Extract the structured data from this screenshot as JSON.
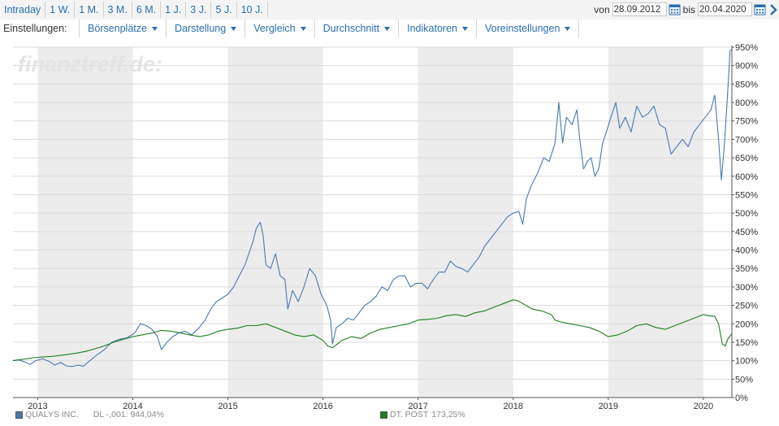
{
  "toolbar": {
    "range_tabs": [
      "Intraday",
      "1 W.",
      "1 M.",
      "3 M.",
      "6 M.",
      "1 J.",
      "3 J.",
      "5 J.",
      "10 J."
    ],
    "from_label": "von",
    "from_date": "28.09.2012",
    "to_label": "bis",
    "to_date": "20.04.2020"
  },
  "menubar": {
    "label": "Einstellungen:",
    "menus": [
      "Börsenplätze",
      "Darstellung",
      "Vergleich",
      "Durchschnitt",
      "Indikatoren",
      "Voreinstellungen"
    ]
  },
  "watermark": "finanztreff.de:",
  "legend": [
    {
      "name": "QUALYS INC.",
      "value": "DL -,001: 944,04%",
      "color": "#4a78b0"
    },
    {
      "name": "DT. POST",
      "value": "173,25%",
      "color": "#1f7d1f"
    }
  ],
  "colors": {
    "band": "#ececec",
    "grid": "#dcdcdc",
    "accent": "#2a6db0"
  },
  "chart_data": {
    "type": "line",
    "x_unit": "year (decimal)",
    "xlim": [
      2012.74,
      2020.3
    ],
    "ylim": [
      0,
      950
    ],
    "y_ticks": [
      0,
      50,
      100,
      150,
      200,
      250,
      300,
      350,
      400,
      450,
      500,
      550,
      600,
      650,
      700,
      750,
      800,
      850,
      900,
      950
    ],
    "y_tick_suffix": "%",
    "x_ticks": [
      2013,
      2014,
      2015,
      2016,
      2017,
      2018,
      2019,
      2020
    ],
    "shaded_years": [
      2013,
      2015,
      2017,
      2019
    ],
    "grid": true,
    "series": [
      {
        "name": "QUALYS INC.",
        "color": "#4a78b0",
        "points": [
          [
            2012.74,
            100
          ],
          [
            2012.8,
            102
          ],
          [
            2012.86,
            97
          ],
          [
            2012.92,
            90
          ],
          [
            2012.98,
            100
          ],
          [
            2013.05,
            105
          ],
          [
            2013.12,
            98
          ],
          [
            2013.18,
            88
          ],
          [
            2013.24,
            95
          ],
          [
            2013.3,
            86
          ],
          [
            2013.36,
            84
          ],
          [
            2013.42,
            88
          ],
          [
            2013.48,
            85
          ],
          [
            2013.55,
            100
          ],
          [
            2013.62,
            115
          ],
          [
            2013.7,
            130
          ],
          [
            2013.78,
            150
          ],
          [
            2013.86,
            158
          ],
          [
            2013.94,
            162
          ],
          [
            2014.02,
            175
          ],
          [
            2014.08,
            200
          ],
          [
            2014.14,
            195
          ],
          [
            2014.2,
            185
          ],
          [
            2014.26,
            165
          ],
          [
            2014.3,
            130
          ],
          [
            2014.36,
            150
          ],
          [
            2014.42,
            165
          ],
          [
            2014.48,
            175
          ],
          [
            2014.55,
            180
          ],
          [
            2014.62,
            170
          ],
          [
            2014.7,
            190
          ],
          [
            2014.76,
            210
          ],
          [
            2014.82,
            240
          ],
          [
            2014.88,
            260
          ],
          [
            2014.94,
            270
          ],
          [
            2015.0,
            280
          ],
          [
            2015.06,
            300
          ],
          [
            2015.12,
            330
          ],
          [
            2015.18,
            360
          ],
          [
            2015.22,
            390
          ],
          [
            2015.26,
            420
          ],
          [
            2015.3,
            460
          ],
          [
            2015.34,
            475
          ],
          [
            2015.37,
            440
          ],
          [
            2015.4,
            360
          ],
          [
            2015.45,
            350
          ],
          [
            2015.5,
            390
          ],
          [
            2015.55,
            330
          ],
          [
            2015.6,
            320
          ],
          [
            2015.63,
            240
          ],
          [
            2015.68,
            290
          ],
          [
            2015.74,
            260
          ],
          [
            2015.8,
            300
          ],
          [
            2015.86,
            350
          ],
          [
            2015.92,
            330
          ],
          [
            2015.98,
            280
          ],
          [
            2016.04,
            250
          ],
          [
            2016.08,
            210
          ],
          [
            2016.1,
            145
          ],
          [
            2016.14,
            190
          ],
          [
            2016.2,
            200
          ],
          [
            2016.26,
            215
          ],
          [
            2016.32,
            210
          ],
          [
            2016.38,
            230
          ],
          [
            2016.44,
            250
          ],
          [
            2016.5,
            260
          ],
          [
            2016.56,
            275
          ],
          [
            2016.62,
            300
          ],
          [
            2016.68,
            290
          ],
          [
            2016.74,
            320
          ],
          [
            2016.8,
            330
          ],
          [
            2016.86,
            330
          ],
          [
            2016.92,
            300
          ],
          [
            2016.98,
            310
          ],
          [
            2017.04,
            310
          ],
          [
            2017.1,
            295
          ],
          [
            2017.16,
            320
          ],
          [
            2017.22,
            340
          ],
          [
            2017.28,
            340
          ],
          [
            2017.34,
            370
          ],
          [
            2017.4,
            355
          ],
          [
            2017.46,
            350
          ],
          [
            2017.52,
            340
          ],
          [
            2017.58,
            360
          ],
          [
            2017.64,
            380
          ],
          [
            2017.7,
            410
          ],
          [
            2017.76,
            430
          ],
          [
            2017.82,
            450
          ],
          [
            2017.88,
            470
          ],
          [
            2017.94,
            490
          ],
          [
            2018.0,
            500
          ],
          [
            2018.06,
            505
          ],
          [
            2018.1,
            470
          ],
          [
            2018.14,
            540
          ],
          [
            2018.2,
            580
          ],
          [
            2018.26,
            610
          ],
          [
            2018.32,
            650
          ],
          [
            2018.38,
            640
          ],
          [
            2018.44,
            690
          ],
          [
            2018.48,
            800
          ],
          [
            2018.52,
            690
          ],
          [
            2018.56,
            760
          ],
          [
            2018.62,
            740
          ],
          [
            2018.67,
            780
          ],
          [
            2018.7,
            700
          ],
          [
            2018.74,
            620
          ],
          [
            2018.78,
            640
          ],
          [
            2018.82,
            650
          ],
          [
            2018.86,
            600
          ],
          [
            2018.9,
            620
          ],
          [
            2018.94,
            690
          ],
          [
            2018.98,
            720
          ],
          [
            2019.04,
            770
          ],
          [
            2019.08,
            800
          ],
          [
            2019.12,
            730
          ],
          [
            2019.18,
            760
          ],
          [
            2019.24,
            720
          ],
          [
            2019.3,
            790
          ],
          [
            2019.36,
            760
          ],
          [
            2019.42,
            770
          ],
          [
            2019.48,
            790
          ],
          [
            2019.54,
            740
          ],
          [
            2019.6,
            730
          ],
          [
            2019.66,
            660
          ],
          [
            2019.72,
            680
          ],
          [
            2019.78,
            700
          ],
          [
            2019.84,
            680
          ],
          [
            2019.9,
            720
          ],
          [
            2019.96,
            740
          ],
          [
            2020.02,
            760
          ],
          [
            2020.08,
            780
          ],
          [
            2020.12,
            820
          ],
          [
            2020.16,
            700
          ],
          [
            2020.19,
            590
          ],
          [
            2020.22,
            680
          ],
          [
            2020.25,
            800
          ],
          [
            2020.28,
            940
          ],
          [
            2020.3,
            944
          ]
        ]
      },
      {
        "name": "DT. POST",
        "color": "#1f7d1f",
        "points": [
          [
            2012.74,
            100
          ],
          [
            2012.85,
            104
          ],
          [
            2012.96,
            108
          ],
          [
            2013.06,
            110
          ],
          [
            2013.17,
            112
          ],
          [
            2013.28,
            116
          ],
          [
            2013.4,
            120
          ],
          [
            2013.5,
            125
          ],
          [
            2013.6,
            132
          ],
          [
            2013.7,
            140
          ],
          [
            2013.8,
            150
          ],
          [
            2013.9,
            158
          ],
          [
            2014.0,
            165
          ],
          [
            2014.1,
            170
          ],
          [
            2014.2,
            175
          ],
          [
            2014.3,
            182
          ],
          [
            2014.4,
            180
          ],
          [
            2014.5,
            175
          ],
          [
            2014.6,
            170
          ],
          [
            2014.7,
            165
          ],
          [
            2014.8,
            170
          ],
          [
            2014.9,
            180
          ],
          [
            2015.0,
            185
          ],
          [
            2015.1,
            188
          ],
          [
            2015.2,
            195
          ],
          [
            2015.3,
            195
          ],
          [
            2015.4,
            200
          ],
          [
            2015.5,
            190
          ],
          [
            2015.6,
            180
          ],
          [
            2015.7,
            170
          ],
          [
            2015.8,
            165
          ],
          [
            2015.9,
            170
          ],
          [
            2016.0,
            155
          ],
          [
            2016.05,
            140
          ],
          [
            2016.1,
            135
          ],
          [
            2016.2,
            155
          ],
          [
            2016.3,
            165
          ],
          [
            2016.4,
            160
          ],
          [
            2016.5,
            175
          ],
          [
            2016.6,
            185
          ],
          [
            2016.7,
            190
          ],
          [
            2016.8,
            195
          ],
          [
            2016.9,
            200
          ],
          [
            2017.0,
            210
          ],
          [
            2017.1,
            212
          ],
          [
            2017.2,
            215
          ],
          [
            2017.3,
            222
          ],
          [
            2017.4,
            225
          ],
          [
            2017.5,
            220
          ],
          [
            2017.6,
            230
          ],
          [
            2017.7,
            235
          ],
          [
            2017.8,
            245
          ],
          [
            2017.9,
            255
          ],
          [
            2018.0,
            265
          ],
          [
            2018.05,
            262
          ],
          [
            2018.1,
            255
          ],
          [
            2018.2,
            240
          ],
          [
            2018.3,
            235
          ],
          [
            2018.4,
            225
          ],
          [
            2018.44,
            210
          ],
          [
            2018.5,
            205
          ],
          [
            2018.6,
            200
          ],
          [
            2018.7,
            195
          ],
          [
            2018.8,
            190
          ],
          [
            2018.9,
            180
          ],
          [
            2019.0,
            165
          ],
          [
            2019.1,
            170
          ],
          [
            2019.2,
            180
          ],
          [
            2019.3,
            195
          ],
          [
            2019.4,
            200
          ],
          [
            2019.5,
            190
          ],
          [
            2019.6,
            185
          ],
          [
            2019.7,
            195
          ],
          [
            2019.8,
            205
          ],
          [
            2019.9,
            215
          ],
          [
            2020.0,
            225
          ],
          [
            2020.06,
            222
          ],
          [
            2020.12,
            220
          ],
          [
            2020.16,
            200
          ],
          [
            2020.2,
            145
          ],
          [
            2020.23,
            140
          ],
          [
            2020.26,
            160
          ],
          [
            2020.3,
            173
          ]
        ]
      }
    ]
  }
}
